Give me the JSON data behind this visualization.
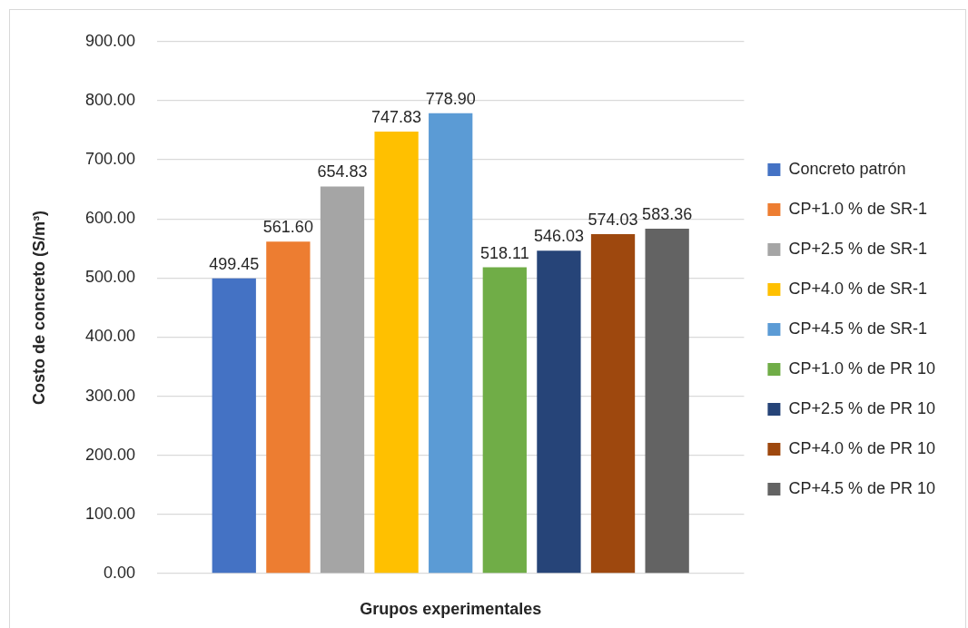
{
  "chart_data": {
    "type": "bar",
    "categories": [
      null
    ],
    "xlabel": "Grupos experimentales",
    "ylabel": "Costo de concreto (S/m³)",
    "series": [
      {
        "name": "Concreto patrón",
        "color": "#4472c4",
        "values": [
          499.45
        ],
        "value_labels": [
          "499.45"
        ]
      },
      {
        "name": "CP+1.0 % de SR-1",
        "color": "#ed7d31",
        "values": [
          561.6
        ],
        "value_labels": [
          "561.60"
        ]
      },
      {
        "name": "CP+2.5 % de SR-1",
        "color": "#a5a5a5",
        "values": [
          654.83
        ],
        "value_labels": [
          "654.83"
        ]
      },
      {
        "name": "CP+4.0 % de SR-1",
        "color": "#ffc000",
        "values": [
          747.83
        ],
        "value_labels": [
          "747.83"
        ]
      },
      {
        "name": "CP+4.5 % de SR-1",
        "color": "#5b9bd5",
        "values": [
          778.9
        ],
        "value_labels": [
          "778.90"
        ]
      },
      {
        "name": "CP+1.0 % de PR 10",
        "color": "#70ad47",
        "values": [
          518.11
        ],
        "value_labels": [
          "518.11"
        ]
      },
      {
        "name": "CP+2.5 % de PR 10",
        "color": "#264478",
        "values": [
          546.03
        ],
        "value_labels": [
          "546.03"
        ]
      },
      {
        "name": "CP+4.0 % de PR 10",
        "color": "#9e480e",
        "values": [
          574.03
        ],
        "value_labels": [
          "574.03"
        ]
      },
      {
        "name": "CP+4.5 % de PR 10",
        "color": "#636363",
        "values": [
          583.36
        ],
        "value_labels": [
          "583.36"
        ]
      }
    ],
    "ylim": [
      0,
      900
    ],
    "yticks": [
      {
        "value": 0,
        "label": "0.00"
      },
      {
        "value": 100,
        "label": "100.00"
      },
      {
        "value": 200,
        "label": "200.00"
      },
      {
        "value": 300,
        "label": "300.00"
      },
      {
        "value": 400,
        "label": "400.00"
      },
      {
        "value": 500,
        "label": "500.00"
      },
      {
        "value": 600,
        "label": "600.00"
      },
      {
        "value": 700,
        "label": "700.00"
      },
      {
        "value": 800,
        "label": "800.00"
      },
      {
        "value": 900,
        "label": "900.00"
      }
    ],
    "grid": "y",
    "legend": "right"
  }
}
